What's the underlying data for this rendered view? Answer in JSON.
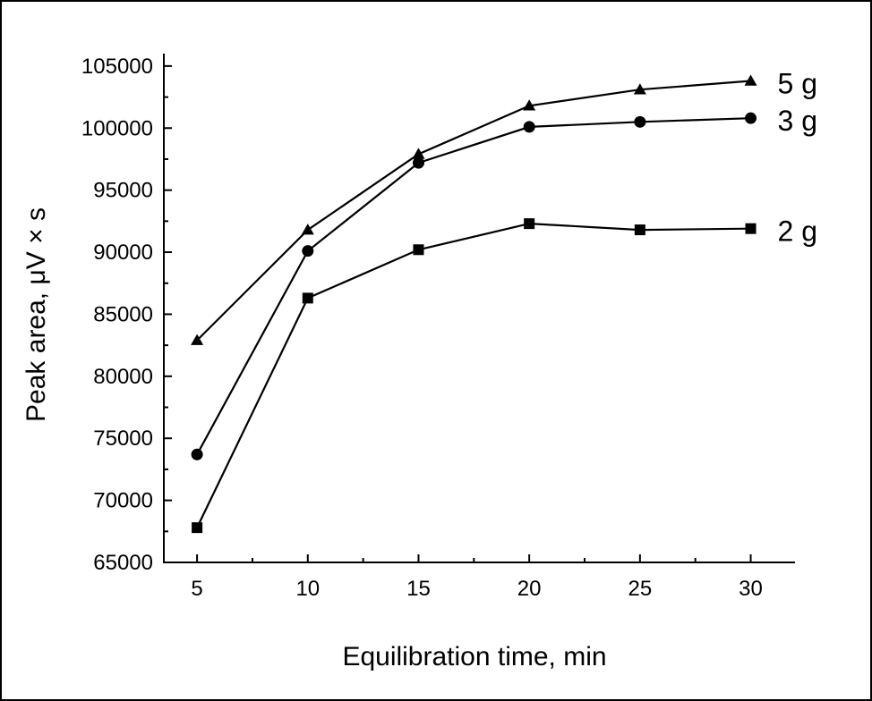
{
  "chart_data": {
    "type": "line",
    "title": "",
    "xlabel": "Equilibration time, min",
    "ylabel": "Peak area, μV × s",
    "x": [
      5,
      10,
      15,
      20,
      25,
      30
    ],
    "xticks": [
      5,
      10,
      15,
      20,
      25,
      30
    ],
    "yticks": [
      65000,
      70000,
      75000,
      80000,
      85000,
      90000,
      95000,
      100000,
      105000
    ],
    "xlim": [
      3.5,
      32
    ],
    "ylim": [
      65000,
      106000
    ],
    "grid": false,
    "series": [
      {
        "name": "5 g",
        "marker": "triangle",
        "values": [
          82900,
          91800,
          97900,
          101800,
          103100,
          103800
        ]
      },
      {
        "name": "3 g",
        "marker": "circle",
        "values": [
          73700,
          90100,
          97200,
          100100,
          100500,
          100800
        ]
      },
      {
        "name": "2 g",
        "marker": "square",
        "values": [
          67800,
          86300,
          90200,
          92300,
          91800,
          91900
        ]
      }
    ]
  }
}
